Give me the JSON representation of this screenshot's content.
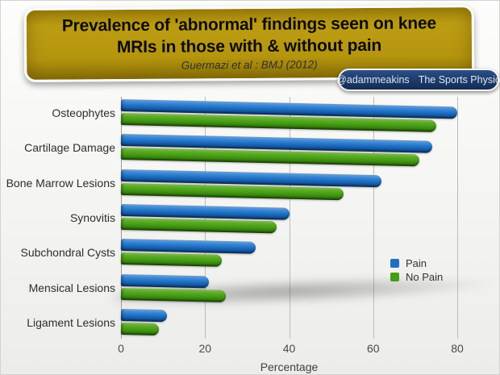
{
  "banner": {
    "title_line1": "Prevalence of 'abnormal' findings seen on knee",
    "title_line2": "MRIs in those with & without pain",
    "subtitle": "Guermazi et al : BMJ (2012)",
    "bg_color": "#b5950e"
  },
  "badge": {
    "handle": "@adammeakins",
    "name": "The Sports Physio",
    "bg_color": "#1d3e70"
  },
  "chart_data": {
    "type": "bar",
    "orientation": "horizontal",
    "categories": [
      "Osteophytes",
      "Cartilage Damage",
      "Bone Marrow Lesions",
      "Synovitis",
      "Subchondral Cysts",
      "Mensical Lesions",
      "Ligament Lesions"
    ],
    "series": [
      {
        "name": "Pain",
        "color": "#1e6fc4",
        "values": [
          80,
          74,
          62,
          40,
          32,
          21,
          11
        ]
      },
      {
        "name": "No Pain",
        "color": "#479d15",
        "values": [
          75,
          71,
          53,
          37,
          24,
          25,
          9
        ]
      }
    ],
    "xlabel": "Percentage",
    "xlim": [
      0,
      80
    ],
    "xticks": [
      0,
      20,
      40,
      60,
      80
    ],
    "grid": true,
    "legend_position": "right-middle"
  }
}
